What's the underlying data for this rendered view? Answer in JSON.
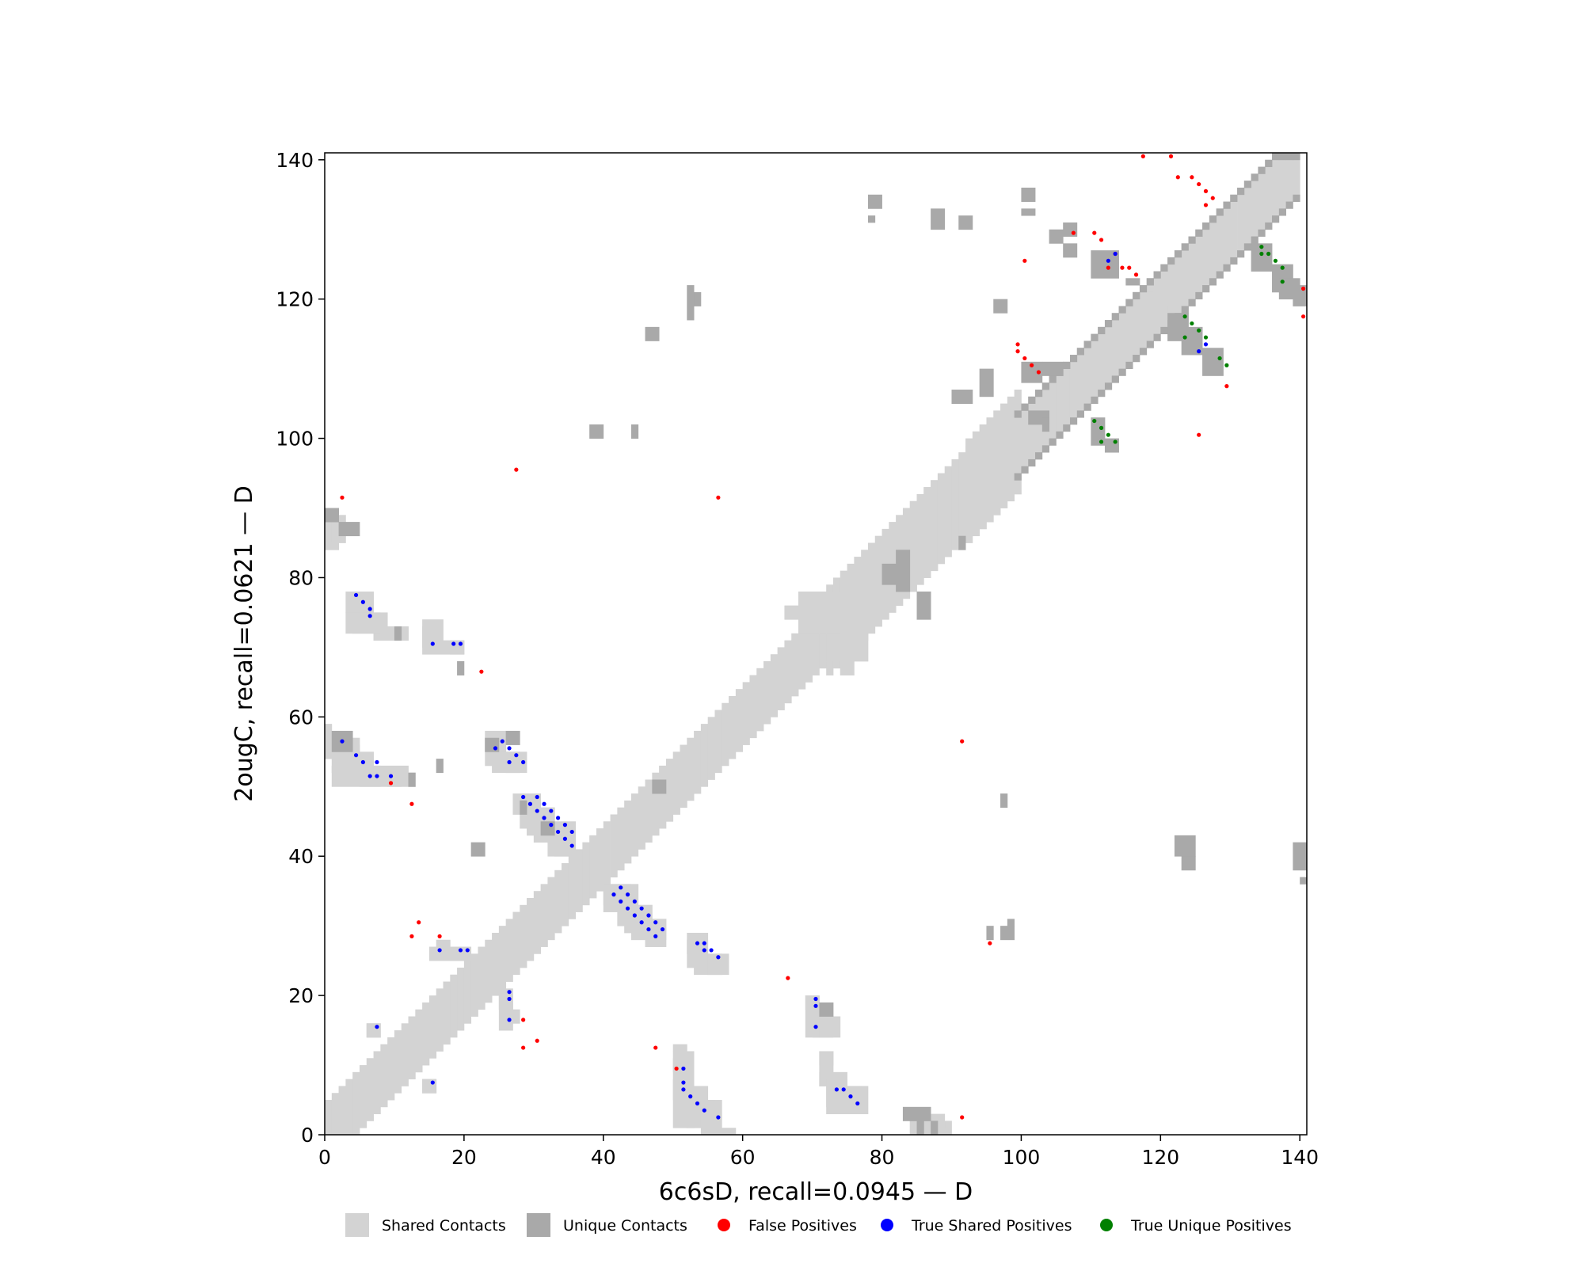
{
  "colors": {
    "shared": "#d3d3d3",
    "unique": "#a9a9a9",
    "false_pos": "#ff0000",
    "true_shared": "#0000ff",
    "true_unique": "#008000"
  },
  "chart_data": {
    "type": "heatmap",
    "xlabel": "6c6sD, recall=0.0945 — D",
    "ylabel": "2ougC, recall=0.0621 — D",
    "xlim": [
      0,
      141
    ],
    "ylim": [
      0,
      141
    ],
    "xticks": [
      0,
      20,
      40,
      60,
      80,
      100,
      120,
      140
    ],
    "yticks": [
      0,
      20,
      40,
      60,
      80,
      100,
      120,
      140
    ],
    "grid": false,
    "legend_position": "bottom",
    "legend": [
      {
        "label": "Shared Contacts",
        "kind": "square",
        "color_key": "shared"
      },
      {
        "label": "Unique Contacts",
        "kind": "square",
        "color_key": "unique"
      },
      {
        "label": "False Positives",
        "kind": "dot",
        "color_key": "false_pos"
      },
      {
        "label": "True Shared Positives",
        "kind": "dot",
        "color_key": "true_shared"
      },
      {
        "label": "True Unique Positives",
        "kind": "dot",
        "color_key": "true_unique"
      }
    ],
    "diagonal_shared": [
      [
        0,
        140,
        4
      ],
      [
        72,
        88,
        6
      ],
      [
        86,
        94,
        6
      ],
      [
        92,
        100,
        7
      ]
    ],
    "diagonal_unique": [
      [
        99,
        140,
        1
      ]
    ],
    "shared_blocks": [
      [
        0,
        1,
        57,
        59
      ],
      [
        2,
        5,
        51,
        56
      ],
      [
        5,
        8,
        50,
        53
      ],
      [
        9,
        11,
        50,
        52
      ],
      [
        12,
        13,
        50,
        52
      ],
      [
        4,
        7,
        72,
        77
      ],
      [
        7,
        9,
        71,
        75
      ],
      [
        10,
        12,
        71,
        73
      ],
      [
        14,
        16,
        70,
        73
      ],
      [
        18,
        20,
        69,
        71
      ],
      [
        23,
        26,
        53,
        57
      ],
      [
        26,
        29,
        52,
        55
      ],
      [
        28,
        31,
        44,
        49
      ],
      [
        30,
        33,
        42,
        47
      ],
      [
        33,
        36,
        40,
        45
      ],
      [
        40,
        44,
        32,
        36
      ],
      [
        43,
        47,
        29,
        33
      ],
      [
        46,
        49,
        27,
        31
      ],
      [
        52,
        55,
        24,
        28
      ],
      [
        55,
        58,
        23,
        26
      ],
      [
        16,
        18,
        26,
        28
      ],
      [
        18,
        20,
        25,
        27
      ],
      [
        25,
        27,
        15,
        21
      ],
      [
        14,
        16,
        6,
        8
      ],
      [
        6,
        8,
        14,
        16
      ],
      [
        50,
        53,
        1,
        12
      ],
      [
        52,
        55,
        1,
        7
      ],
      [
        54,
        57,
        0,
        5
      ],
      [
        69,
        71,
        14,
        20
      ],
      [
        71,
        74,
        14,
        17
      ],
      [
        71,
        73,
        7,
        12
      ],
      [
        72,
        75,
        3,
        8
      ],
      [
        75,
        78,
        3,
        7
      ],
      [
        116,
        119,
        118,
        121
      ],
      [
        0,
        2,
        84,
        90
      ],
      [
        1,
        3,
        85,
        89
      ],
      [
        74,
        76,
        66,
        71
      ],
      [
        72,
        78,
        68,
        74
      ]
    ],
    "unique_blocks": [
      [
        0,
        2,
        88,
        90
      ],
      [
        2,
        5,
        86,
        88
      ],
      [
        1,
        4,
        55,
        58
      ],
      [
        12,
        13,
        50,
        52
      ],
      [
        16,
        17,
        52,
        54
      ],
      [
        10,
        11,
        71,
        73
      ],
      [
        19,
        20,
        66,
        68
      ],
      [
        21,
        23,
        40,
        42
      ],
      [
        26,
        28,
        56,
        58
      ],
      [
        23,
        25,
        55,
        57
      ],
      [
        28,
        29,
        46,
        48
      ],
      [
        31,
        33,
        43,
        45
      ],
      [
        38,
        40,
        100,
        102
      ],
      [
        44,
        45,
        100,
        102
      ],
      [
        46,
        48,
        114,
        116
      ],
      [
        52,
        53,
        117,
        122
      ],
      [
        53,
        54,
        119,
        121
      ],
      [
        47,
        49,
        49,
        51
      ],
      [
        78,
        80,
        133,
        135
      ],
      [
        78,
        79,
        131,
        132
      ],
      [
        87,
        89,
        130,
        133
      ],
      [
        91,
        93,
        130,
        132
      ],
      [
        96,
        98,
        118,
        120
      ],
      [
        90,
        93,
        105,
        107
      ],
      [
        94,
        96,
        106,
        110
      ],
      [
        100,
        103,
        108,
        111
      ],
      [
        103,
        106,
        109,
        111
      ],
      [
        101,
        104,
        102,
        104
      ],
      [
        110,
        112,
        99,
        103
      ],
      [
        112,
        114,
        98,
        100
      ],
      [
        100,
        102,
        134,
        136
      ],
      [
        100,
        102,
        132,
        133
      ],
      [
        104,
        106,
        128,
        130
      ],
      [
        106,
        108,
        129,
        131
      ],
      [
        110,
        114,
        123,
        127
      ],
      [
        115,
        117,
        122,
        123
      ],
      [
        121,
        124,
        114,
        118
      ],
      [
        123,
        126,
        112,
        116
      ],
      [
        126,
        129,
        109,
        113
      ],
      [
        133,
        136,
        124,
        128
      ],
      [
        136,
        139,
        121,
        125
      ],
      [
        137,
        140,
        120,
        123
      ],
      [
        139,
        141,
        119,
        122
      ],
      [
        122,
        125,
        40,
        43
      ],
      [
        123,
        125,
        38,
        40
      ],
      [
        139,
        141,
        38,
        42
      ],
      [
        140,
        141,
        36,
        37
      ],
      [
        97,
        98,
        47,
        49
      ],
      [
        95,
        96,
        28,
        30
      ],
      [
        97,
        99,
        28,
        30
      ],
      [
        98,
        99,
        30,
        31
      ],
      [
        71,
        73,
        17,
        19
      ],
      [
        83,
        87,
        2,
        4
      ],
      [
        85,
        86,
        0,
        2
      ],
      [
        87,
        88,
        0,
        2
      ],
      [
        80,
        82,
        79,
        82
      ],
      [
        82,
        84,
        78,
        84
      ],
      [
        85,
        87,
        74,
        78
      ],
      [
        91,
        92,
        84,
        86
      ],
      [
        103,
        104,
        101,
        103
      ],
      [
        106,
        108,
        126,
        128
      ]
    ],
    "false_positives": [
      [
        2,
        91
      ],
      [
        27,
        95
      ],
      [
        56,
        91
      ],
      [
        22,
        66
      ],
      [
        9,
        50
      ],
      [
        12,
        47
      ],
      [
        12,
        28
      ],
      [
        13,
        30
      ],
      [
        16,
        28
      ],
      [
        28,
        16
      ],
      [
        28,
        12
      ],
      [
        30,
        13
      ],
      [
        47,
        12
      ],
      [
        50,
        9
      ],
      [
        66,
        22
      ],
      [
        91,
        56
      ],
      [
        91,
        2
      ],
      [
        95,
        27
      ],
      [
        117,
        140
      ],
      [
        121,
        140
      ],
      [
        122,
        137
      ],
      [
        124,
        137
      ],
      [
        125,
        136
      ],
      [
        126,
        135
      ],
      [
        127,
        134
      ],
      [
        126,
        133
      ],
      [
        107,
        129
      ],
      [
        110,
        129
      ],
      [
        111,
        128
      ],
      [
        113,
        126
      ],
      [
        112,
        124
      ],
      [
        114,
        124
      ],
      [
        115,
        124
      ],
      [
        116,
        123
      ],
      [
        125,
        100
      ],
      [
        129,
        107
      ],
      [
        100,
        125
      ],
      [
        99,
        113
      ],
      [
        99,
        112
      ],
      [
        100,
        111
      ],
      [
        101,
        110
      ],
      [
        102,
        109
      ],
      [
        140,
        121
      ],
      [
        140,
        117
      ]
    ],
    "true_shared_positives": [
      [
        2,
        56
      ],
      [
        4,
        54
      ],
      [
        5,
        53
      ],
      [
        6,
        51
      ],
      [
        7,
        53
      ],
      [
        7,
        51
      ],
      [
        9,
        51
      ],
      [
        4,
        77
      ],
      [
        5,
        76
      ],
      [
        6,
        75
      ],
      [
        6,
        74
      ],
      [
        15,
        70
      ],
      [
        18,
        70
      ],
      [
        19,
        70
      ],
      [
        24,
        55
      ],
      [
        25,
        56
      ],
      [
        26,
        55
      ],
      [
        26,
        53
      ],
      [
        27,
        54
      ],
      [
        28,
        53
      ],
      [
        28,
        48
      ],
      [
        29,
        47
      ],
      [
        30,
        48
      ],
      [
        30,
        46
      ],
      [
        31,
        47
      ],
      [
        31,
        45
      ],
      [
        32,
        46
      ],
      [
        32,
        44
      ],
      [
        33,
        45
      ],
      [
        33,
        43
      ],
      [
        34,
        44
      ],
      [
        34,
        42
      ],
      [
        35,
        43
      ],
      [
        35,
        41
      ],
      [
        41,
        34
      ],
      [
        42,
        35
      ],
      [
        42,
        33
      ],
      [
        43,
        34
      ],
      [
        43,
        32
      ],
      [
        44,
        33
      ],
      [
        44,
        31
      ],
      [
        45,
        32
      ],
      [
        45,
        30
      ],
      [
        46,
        31
      ],
      [
        46,
        29
      ],
      [
        47,
        30
      ],
      [
        47,
        28
      ],
      [
        48,
        29
      ],
      [
        53,
        27
      ],
      [
        54,
        26
      ],
      [
        54,
        27
      ],
      [
        55,
        26
      ],
      [
        56,
        25
      ],
      [
        16,
        26
      ],
      [
        19,
        26
      ],
      [
        20,
        26
      ],
      [
        26,
        20
      ],
      [
        26,
        19
      ],
      [
        26,
        16
      ],
      [
        15,
        7
      ],
      [
        7,
        15
      ],
      [
        51,
        9
      ],
      [
        51,
        7
      ],
      [
        51,
        6
      ],
      [
        52,
        5
      ],
      [
        53,
        4
      ],
      [
        54,
        3
      ],
      [
        56,
        2
      ],
      [
        70,
        19
      ],
      [
        70,
        18
      ],
      [
        70,
        15
      ],
      [
        73,
        6
      ],
      [
        74,
        6
      ],
      [
        75,
        5
      ],
      [
        76,
        4
      ],
      [
        112,
        125
      ],
      [
        113,
        126
      ],
      [
        126,
        113
      ],
      [
        125,
        112
      ]
    ],
    "true_unique_positives": [
      [
        134,
        127
      ],
      [
        134,
        126
      ],
      [
        135,
        126
      ],
      [
        136,
        125
      ],
      [
        137,
        124
      ],
      [
        137,
        122
      ],
      [
        123,
        117
      ],
      [
        124,
        116
      ],
      [
        123,
        114
      ],
      [
        125,
        115
      ],
      [
        126,
        114
      ],
      [
        128,
        111
      ],
      [
        129,
        110
      ],
      [
        110,
        102
      ],
      [
        111,
        101
      ],
      [
        112,
        100
      ],
      [
        113,
        99
      ],
      [
        111,
        99
      ]
    ]
  }
}
